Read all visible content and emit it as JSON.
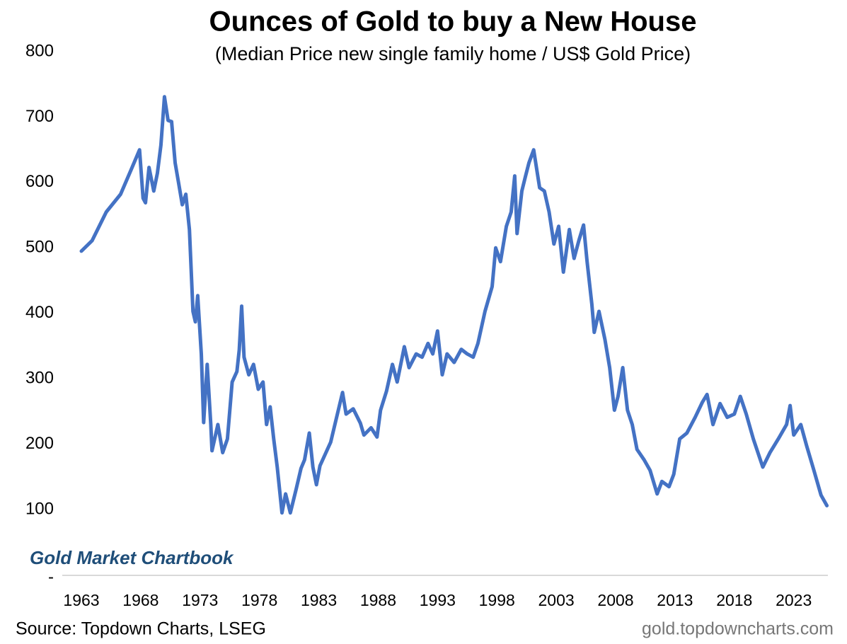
{
  "chart_data": {
    "type": "line",
    "title": "Ounces of Gold to buy a New House",
    "subtitle": "(Median Price new single family home / US$ Gold Price)",
    "annotation": "Gold Market Chartbook",
    "source": "Source: Topdown Charts, LSEG",
    "watermark": "gold.topdowncharts.com",
    "color": "#4472c4",
    "xlim": [
      1963,
      2026
    ],
    "xticks": [
      1963,
      1968,
      1973,
      1978,
      1983,
      1988,
      1993,
      1998,
      2003,
      2008,
      2013,
      2018,
      2023
    ],
    "ylim": [
      0,
      800
    ],
    "yticks": [
      {
        "value": 0,
        "label": "-"
      },
      100,
      200,
      300,
      400,
      500,
      600,
      700,
      800
    ],
    "grid": false,
    "x": [
      1963.0,
      1963.9,
      1965.1,
      1966.3,
      1967.2,
      1967.9,
      1968.2,
      1968.4,
      1968.7,
      1969.1,
      1969.4,
      1969.7,
      1970.0,
      1970.3,
      1970.6,
      1970.9,
      1971.2,
      1971.5,
      1971.8,
      1972.1,
      1972.4,
      1972.6,
      1972.8,
      1973.1,
      1973.3,
      1973.6,
      1973.9,
      1974.0,
      1974.5,
      1974.9,
      1975.3,
      1975.7,
      1976.1,
      1976.3,
      1976.5,
      1976.7,
      1977.1,
      1977.5,
      1977.9,
      1978.3,
      1978.6,
      1978.9,
      1979.2,
      1979.5,
      1979.9,
      1980.2,
      1980.6,
      1981.1,
      1981.5,
      1981.8,
      1982.2,
      1982.5,
      1982.8,
      1983.1,
      1983.6,
      1984.0,
      1984.5,
      1985.0,
      1985.3,
      1985.9,
      1986.5,
      1986.8,
      1987.4,
      1987.9,
      1988.2,
      1988.7,
      1989.2,
      1989.6,
      1990.2,
      1990.6,
      1991.2,
      1991.7,
      1992.2,
      1992.6,
      1993.0,
      1993.4,
      1993.8,
      1994.4,
      1995.0,
      1995.5,
      1996.0,
      1996.4,
      1997.0,
      1997.6,
      1997.9,
      1998.3,
      1998.8,
      1999.2,
      1999.5,
      1999.7,
      2000.1,
      2000.4,
      2000.7,
      2001.1,
      2001.6,
      2002.0,
      2002.4,
      2002.8,
      2003.2,
      2003.6,
      2004.1,
      2004.5,
      2004.9,
      2005.3,
      2005.6,
      2006.0,
      2006.2,
      2006.6,
      2007.1,
      2007.5,
      2007.9,
      2008.2,
      2008.6,
      2009.0,
      2009.4,
      2009.8,
      2010.4,
      2010.9,
      2011.5,
      2011.9,
      2012.5,
      2012.9,
      2013.4,
      2014.0,
      2014.7,
      2015.3,
      2015.7,
      2016.2,
      2016.8,
      2017.4,
      2018.0,
      2018.5,
      2019.0,
      2019.6,
      2020.4,
      2021.0,
      2021.7,
      2022.4,
      2022.7,
      2023.0,
      2023.6,
      2024.1,
      2024.7,
      2025.3,
      2025.8
    ],
    "values": [
      495,
      511,
      555,
      582,
      620,
      650,
      576,
      569,
      623,
      587,
      614,
      657,
      731,
      695,
      693,
      630,
      598,
      566,
      582,
      528,
      403,
      387,
      427,
      338,
      233,
      322,
      230,
      190,
      230,
      187,
      208,
      295,
      311,
      344,
      411,
      333,
      306,
      322,
      284,
      295,
      230,
      257,
      208,
      165,
      95,
      124,
      95,
      132,
      163,
      176,
      217,
      165,
      138,
      167,
      187,
      203,
      241,
      279,
      246,
      254,
      232,
      214,
      225,
      211,
      252,
      281,
      322,
      295,
      349,
      317,
      338,
      333,
      354,
      338,
      373,
      306,
      338,
      325,
      345,
      338,
      333,
      354,
      403,
      441,
      500,
      479,
      533,
      555,
      610,
      522,
      587,
      609,
      630,
      650,
      592,
      587,
      555,
      506,
      533,
      463,
      528,
      484,
      511,
      535,
      479,
      414,
      371,
      403,
      360,
      317,
      252,
      273,
      317,
      252,
      230,
      192,
      176,
      160,
      124,
      143,
      135,
      154,
      208,
      217,
      241,
      264,
      276,
      230,
      262,
      241,
      246,
      273,
      246,
      208,
      165,
      187,
      208,
      230,
      259,
      214,
      230,
      197,
      160,
      122,
      106
    ]
  }
}
